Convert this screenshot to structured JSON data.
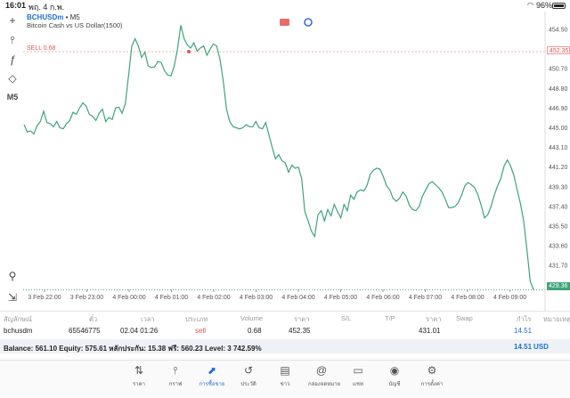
{
  "status": {
    "time": "16:01",
    "date": "พฤ. 4 ก.พ.",
    "battery": "96%"
  },
  "toolbar": {
    "crosshair": "+",
    "candles": "⫯",
    "function": "ƒ",
    "objects": "◇",
    "timeframe": "M5",
    "zoom": "⚲",
    "export": "⇲"
  },
  "symbol": {
    "code": "BCHUSDm",
    "tf": "• M5",
    "description": "Bitcoin Cash vs US Dollar(1500)"
  },
  "sell_label": "SELL 0.68",
  "sell_price_tag": "452.35",
  "bid_price_tag": "429.36",
  "chart_data": {
    "type": "line",
    "ylim": [
      429.36,
      455.8
    ],
    "y_ticks": [
      "454.50",
      "452.35",
      "450.70",
      "448.80",
      "446.90",
      "445.00",
      "443.10",
      "441.20",
      "439.30",
      "437.40",
      "435.50",
      "433.60",
      "431.70",
      "429.80"
    ],
    "x_ticks": [
      "3 Feb 22:00",
      "3 Feb 23:00",
      "4 Feb 00:00",
      "4 Feb 01:00",
      "4 Feb 02:00",
      "4 Feb 03:00",
      "4 Feb 04:00",
      "4 Feb 05:00",
      "4 Feb 06:00",
      "4 Feb 07:00",
      "4 Feb 08:00",
      "4 Feb 09:00"
    ],
    "line_color": "#3fa37a",
    "sell_level": 452.35,
    "bid_level": 429.36,
    "series": [
      {
        "values": [
          445.3,
          444.6,
          444.7,
          444.4,
          445.2,
          445.6,
          446.6,
          445.5,
          445.4,
          445.1,
          445.6,
          445.0,
          444.9,
          445.4,
          445.7,
          446.5,
          446.3,
          446.9,
          447.4,
          447.1,
          446.3,
          446.1,
          445.7,
          446.4,
          446.8,
          445.6,
          446.0,
          445.8,
          446.9,
          447.0,
          446.4,
          447.3,
          450.0,
          452.9,
          453.6,
          452.9,
          451.8,
          452.3,
          451.0,
          450.8,
          450.9,
          451.4,
          451.3,
          450.5,
          450.1,
          450.0,
          451.0,
          452.6,
          454.9,
          453.6,
          453.0,
          452.7,
          453.2,
          452.4,
          452.7,
          452.9,
          452.0,
          452.6,
          453.1,
          452.9,
          451.6,
          449.5,
          446.8,
          445.6,
          445.1,
          445.0,
          444.9,
          445.0,
          445.3,
          445.1,
          445.1,
          445.6,
          445.0,
          444.9,
          445.5,
          444.3,
          443.1,
          442.0,
          442.4,
          441.8,
          441.6,
          440.7,
          441.4,
          441.1,
          441.2,
          440.1,
          436.9,
          436.0,
          435.0,
          434.5,
          436.6,
          437.0,
          436.0,
          437.1,
          436.5,
          437.6,
          436.9,
          436.3,
          437.6,
          437.0,
          438.5,
          438.1,
          438.8,
          439.0,
          438.9,
          439.4,
          440.5,
          440.9,
          441.1,
          441.0,
          440.3,
          439.4,
          439.0,
          438.2,
          437.9,
          438.2,
          438.8,
          438.4,
          437.5,
          437.1,
          437.0,
          437.4,
          438.4,
          439.0,
          439.6,
          439.8,
          439.5,
          439.2,
          438.8,
          438.1,
          437.3,
          437.3,
          437.4,
          437.8,
          438.5,
          439.4,
          439.7,
          439.5,
          439.2,
          438.5,
          437.5,
          436.3,
          436.6,
          437.4,
          438.5,
          439.4,
          440.1,
          441.3,
          441.9,
          441.3,
          440.4,
          439.0,
          437.7,
          436.0,
          433.2,
          430.2,
          429.36
        ]
      }
    ]
  },
  "table": {
    "headers": [
      "สัญลักษณ์",
      "ตั๋ว",
      "เวลา",
      "ประเภท",
      "Volume",
      "ราคา",
      "S/L",
      "T/P",
      "ราคา",
      "Swap",
      "กำไร",
      "หมายเหตุ"
    ],
    "row": {
      "symbol": "bchusdm",
      "ticket": "65546775",
      "time": "02.04 01:26",
      "type": "sell",
      "volume": "0.68",
      "open_price": "452.35",
      "current_price": "431.01",
      "profit": "14.51"
    }
  },
  "balance": {
    "text": "Balance: 561.10 Equity: 575.61 หลักประกัน: 15.38 ฟรี: 560.23 Level: 3 742.59%",
    "total": "14.51",
    "currency": "USD"
  },
  "nav": [
    {
      "label": "ราคา",
      "icon": "⇅"
    },
    {
      "label": "กราฟ",
      "icon": "⫯"
    },
    {
      "label": "การซื้อขาย",
      "icon": "⬈"
    },
    {
      "label": "ประวัติ",
      "icon": "↺"
    },
    {
      "label": "ข่าว",
      "icon": "▤"
    },
    {
      "label": "กล่องจดหมาย",
      "icon": "@"
    },
    {
      "label": "แชท",
      "icon": "▭"
    },
    {
      "label": "บัญชี",
      "icon": "◉"
    },
    {
      "label": "การตั้งค่า",
      "icon": "⚙"
    }
  ]
}
